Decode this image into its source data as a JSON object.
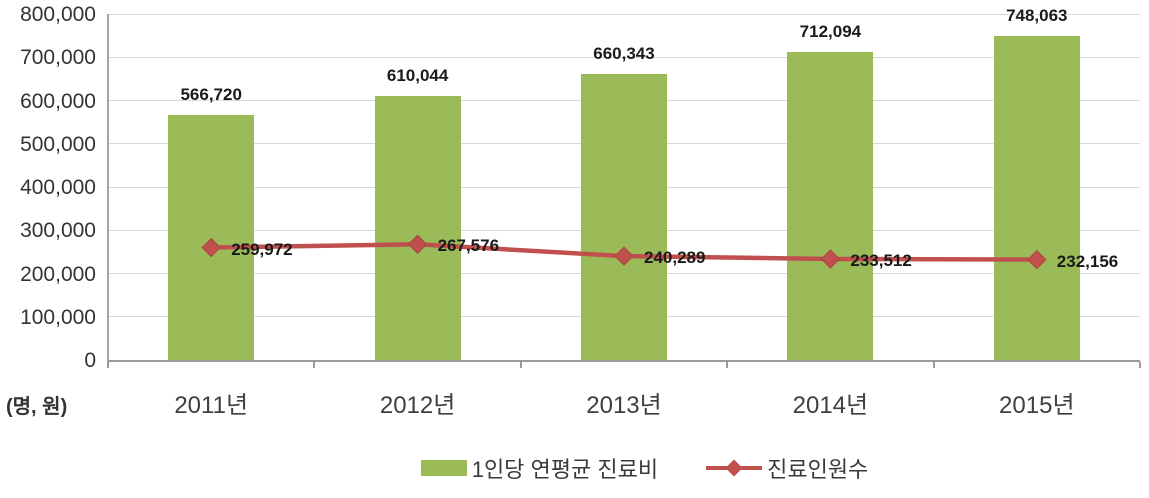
{
  "chart_data": {
    "type": "bar",
    "categories": [
      "2011년",
      "2012년",
      "2013년",
      "2014년",
      "2015년"
    ],
    "series": [
      {
        "name": "1인당 연평균 진료비",
        "type": "bar",
        "values": [
          566720,
          610044,
          660343,
          712094,
          748063
        ],
        "labels": [
          "566,720",
          "610,044",
          "660,343",
          "712,094",
          "748,063"
        ],
        "color": "#9BBB59"
      },
      {
        "name": "진료인원수",
        "type": "line",
        "values": [
          259972,
          267576,
          240289,
          233512,
          232156
        ],
        "labels": [
          "259,972",
          "267,576",
          "240,289",
          "233,512",
          "232,156"
        ],
        "color": "#C0504D",
        "marker": "diamond"
      }
    ],
    "ylim": [
      0,
      800000
    ],
    "ytick_step": 100000,
    "ytick_labels": [
      "0",
      "100,000",
      "200,000",
      "300,000",
      "400,000",
      "500,000",
      "600,000",
      "700,000",
      "800,000"
    ],
    "xlabel": "",
    "ylabel": "",
    "axis_unit_label": "(명, 원)",
    "grid": true,
    "legend_position": "bottom"
  },
  "legend": {
    "bar_label": "1인당 연평균 진료비",
    "line_label": "진료인원수"
  },
  "colors": {
    "bar": "#9BBB59",
    "line": "#C0504D",
    "marker": "#C0504D",
    "gridline": "#D9D9D9",
    "axis": "#9B9B9B",
    "text": "#1A1A1A"
  }
}
